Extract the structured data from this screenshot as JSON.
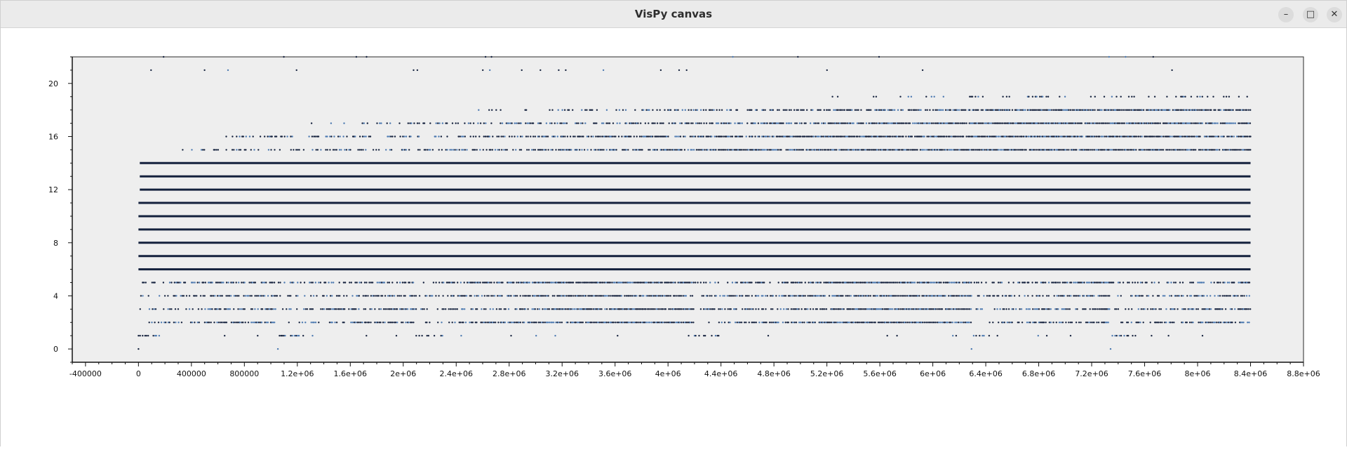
{
  "window": {
    "title": "VisPy canvas",
    "controls": {
      "minimize_icon": "minimize-icon",
      "maximize_icon": "maximize-icon",
      "close_icon": "close-icon"
    }
  },
  "chart_data": {
    "type": "scatter",
    "background": "#eeeeee",
    "marker_color": "#14213d",
    "accent_color": "#4a78b0",
    "grid": false,
    "xlim": [
      -500000,
      8800000
    ],
    "ylim": [
      -1,
      22
    ],
    "x_ticks": [
      -400000,
      0,
      400000,
      800000,
      1200000,
      1600000,
      2000000,
      2400000,
      2800000,
      3200000,
      3600000,
      4000000,
      4400000,
      4800000,
      5200000,
      5600000,
      6000000,
      6400000,
      6800000,
      7200000,
      7600000,
      8000000,
      8400000,
      8800000
    ],
    "x_tick_labels": [
      "-400000",
      "0",
      "400000",
      "800000",
      "1.2e+06",
      "1.6e+06",
      "2e+06",
      "2.4e+06",
      "2.8e+06",
      "3.2e+06",
      "3.6e+06",
      "4e+06",
      "4.4e+06",
      "4.8e+06",
      "5.2e+06",
      "5.6e+06",
      "6e+06",
      "6.4e+06",
      "6.8e+06",
      "7.2e+06",
      "7.6e+06",
      "8e+06",
      "8.4e+06",
      "8.8e+06"
    ],
    "y_ticks": [
      0,
      4,
      8,
      12,
      16,
      20
    ],
    "y_tick_labels": [
      "0",
      "4",
      "8",
      "12",
      "16",
      "20"
    ],
    "series": [
      {
        "x_range": [
          0,
          8400000
        ],
        "y_values": [
          0,
          1,
          2,
          3,
          4,
          5,
          6,
          7,
          8,
          9,
          10,
          11,
          12,
          13,
          14,
          15,
          16,
          17,
          18,
          19,
          20,
          21,
          22
        ],
        "segment_starts": [
          0,
          1048576,
          2097152,
          4194304,
          6291456,
          7340032
        ],
        "description_of_distribution": "integer y levels; dense lines 6-14 across entire range; sparse at low and high levels with restarts at segment boundaries"
      }
    ]
  }
}
